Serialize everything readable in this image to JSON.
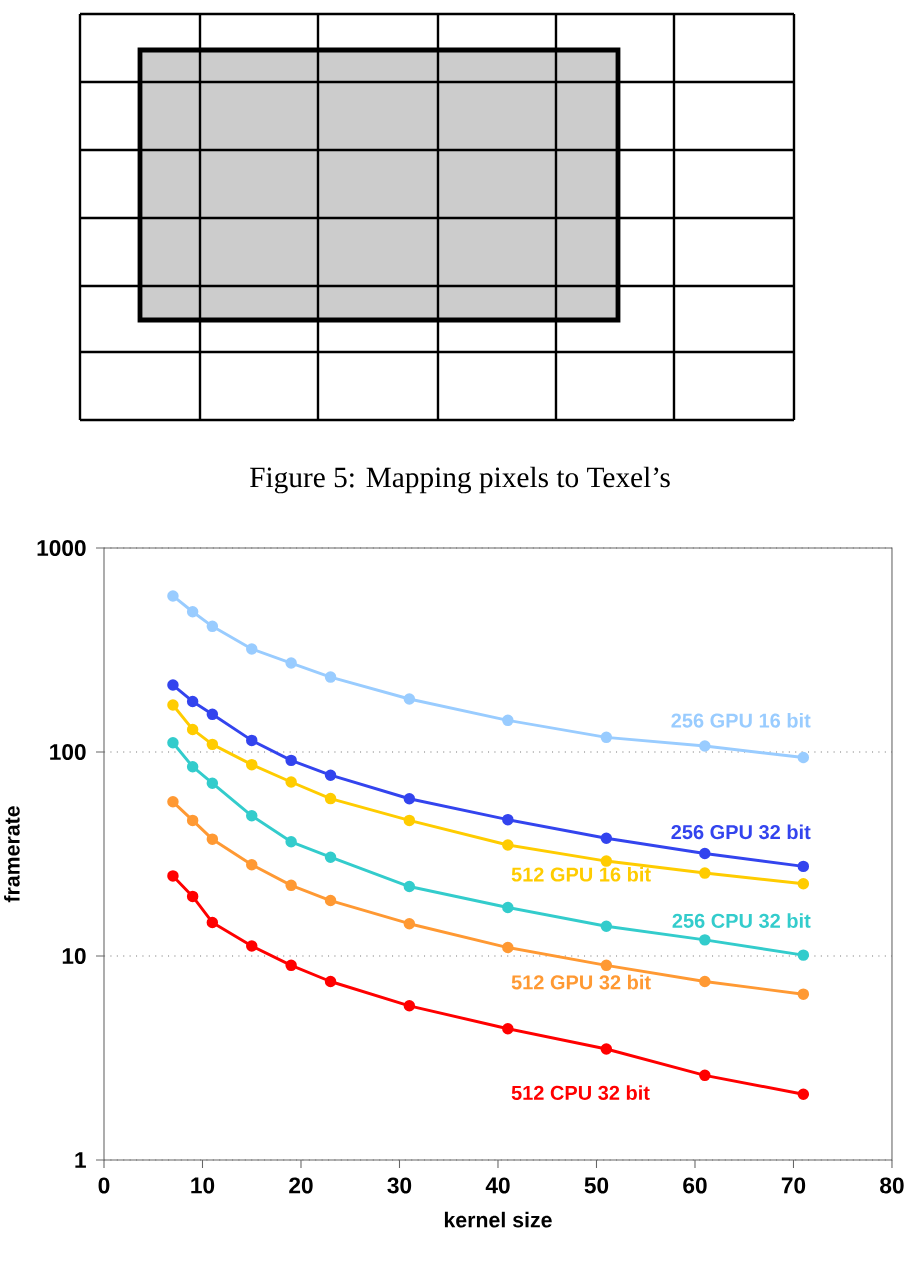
{
  "chart_data": {
    "type": "line",
    "xlabel": "kernel size",
    "ylabel": "framerate",
    "log": "y",
    "grid": "y",
    "marker": "circle",
    "xlim": [
      0,
      80
    ],
    "xticks": [
      0,
      10,
      20,
      30,
      40,
      50,
      60,
      70,
      80
    ],
    "ylim": [
      1,
      1000
    ],
    "yticks": [
      1,
      10,
      100,
      1000
    ],
    "x": [
      7,
      9,
      11,
      15,
      19,
      23,
      31,
      41,
      51,
      61,
      71
    ],
    "annotations": [
      "Figure 5: Mapping pixels to Texel’s"
    ],
    "series": [
      {
        "name": "256 GPU 16 bit",
        "color": "#99ccff",
        "values": [
          582,
          487,
          413,
          320,
          273,
          233,
          182,
          143,
          118,
          107,
          94
        ]
      },
      {
        "name": "256 GPU 32 bit",
        "color": "#3344ee",
        "values": [
          213,
          177,
          153,
          114,
          91,
          77,
          59,
          46.6,
          37.8,
          31.8,
          27.5
        ]
      },
      {
        "name": "512 GPU 16 bit",
        "color": "#ffcc00",
        "values": [
          170,
          129,
          109,
          86.7,
          71.3,
          59.1,
          46.2,
          35,
          29.2,
          25.5,
          22.6
        ]
      },
      {
        "name": "256 CPU 32 bit",
        "color": "#33cccc",
        "values": [
          111,
          84.7,
          70.3,
          48.7,
          36.3,
          30.5,
          21.9,
          17.3,
          14.0,
          12.0,
          10.1
        ]
      },
      {
        "name": "512 GPU 32 bit",
        "color": "#ff9933",
        "values": [
          57,
          46.2,
          37.4,
          28,
          22.2,
          18.7,
          14.4,
          11.0,
          9.0,
          7.5,
          6.5
        ]
      },
      {
        "name": "512 CPU 32 bit",
        "color": "#ff0000",
        "values": [
          24.7,
          19.6,
          14.6,
          11.2,
          9.0,
          7.5,
          5.7,
          4.4,
          3.5,
          2.6,
          2.1
        ]
      }
    ]
  }
}
